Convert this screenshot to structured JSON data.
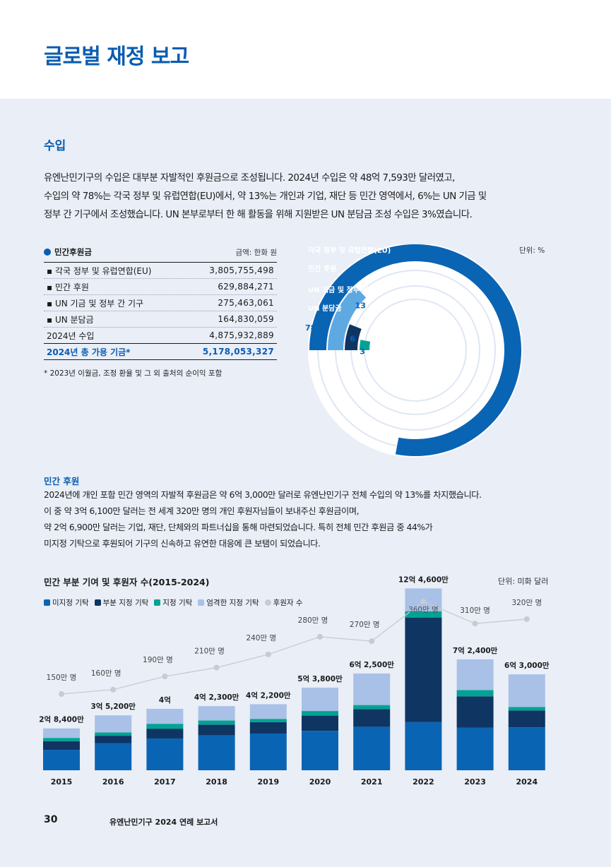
{
  "page_title": "글로벌 재정 보고",
  "section_title": "수입",
  "intro": [
    "유엔난민기구의 수입은 대부분 자발적인 후원금으로 조성됩니다. 2024년 수입은 약 48억 7,593만 달러였고,",
    "수입의 약 78%는 각국 정부 및 유럽연합(EU)에서, 약 13%는 개인과 기업, 재단 등 민간 영역에서, 6%는 UN 기금 및",
    "정부 간 기구에서 조성했습니다. UN 본부로부터 한 해 활동을 위해 지원받은 UN 분담금 조성 수입은 3%였습니다."
  ],
  "table": {
    "title": "민간후원금",
    "unit": "금액: 한화 원",
    "rows": [
      {
        "label": "▪ 각국 정부 및 유럽연합(EU)",
        "amount": "3,805,755,498"
      },
      {
        "label": "▪ 민간 후원",
        "amount": "629,884,271"
      },
      {
        "label": "▪ UN 기금 및 정부 간 기구",
        "amount": "275,463,061"
      },
      {
        "label": "▪ UN 분담금",
        "amount": "164,830,059"
      }
    ],
    "year_row": {
      "label": "2024년 수입",
      "amount": "4,875,932,889"
    },
    "total_row": {
      "label": "2024년 총 가용 기금*",
      "amount": "5,178,053,327"
    },
    "footnote": "* 2023년 이월금, 조정 환율 및 그 외 출처의 순이익 포함"
  },
  "donut": {
    "unit": "단위: %",
    "rings": [
      {
        "label": "각국 정부 및 유럽연합(EU)",
        "value": 78,
        "color": "#0a64b4"
      },
      {
        "label": "민간 후원",
        "value": 13,
        "color": "#5ea9e2"
      },
      {
        "label": "UN 기금 및 정부 간 기구",
        "value": 6,
        "color": "#0f3563"
      },
      {
        "label": "UN 분담금",
        "value": 3,
        "color": "#00a393"
      }
    ]
  },
  "private": {
    "title": "민간 후원",
    "body": [
      "2024년에 개인 포함 민간 영역의 자발적 후원금은 약 6억 3,000만 달러로 유엔난민기구 전체 수입의 약 13%를 차지했습니다.",
      "이 중 약 3억 6,100만 달러는 전 세계 320만 명의 개인 후원자님들이 보내주신 후원금이며,",
      "약 2억 6,900만 달러는 기업, 재단, 단체와의 파트너십을 통해 마련되었습니다. 특히 전체 민간 후원금 중 44%가",
      "미지정 기탁으로 후원되어 기구의 신속하고 유연한 대응에 큰 보탬이 되었습니다."
    ]
  },
  "chart_title": "민간 부분 기여 및 후원자 수(2015-2024)",
  "chart_unit": "단위: 미화 달러",
  "chart_data": {
    "type": "bar",
    "categories": [
      "2015",
      "2016",
      "2017",
      "2018",
      "2019",
      "2020",
      "2021",
      "2022",
      "2023",
      "2024"
    ],
    "series": [
      {
        "name": "미지정 기탁",
        "color": "#0a64b4",
        "values": [
          0.75,
          1.0,
          1.17,
          1.28,
          1.35,
          1.45,
          1.6,
          1.77,
          1.57,
          1.58
        ]
      },
      {
        "name": "부분 지정 기탁",
        "color": "#0f3563",
        "values": [
          0.32,
          0.27,
          0.36,
          0.4,
          0.42,
          0.56,
          0.65,
          3.85,
          1.15,
          0.62
        ]
      },
      {
        "name": "지정 기탁",
        "color": "#00a393",
        "values": [
          0.12,
          0.12,
          0.18,
          0.15,
          0.12,
          0.17,
          0.15,
          0.23,
          0.23,
          0.13
        ]
      },
      {
        "name": "엄격한 지정 기탁",
        "color": "#a9c1e6",
        "values": [
          0.35,
          0.63,
          0.55,
          0.53,
          0.54,
          0.86,
          1.16,
          0.84,
          1.13,
          1.2
        ]
      }
    ],
    "total_labels": [
      "2억 8,400만",
      "3억 5,200만",
      "4억",
      "4억 2,300만",
      "4억 2,200만",
      "5억 3,800만",
      "6억 2,500만",
      "12억 4,600만",
      "7억 2,400만",
      "6억 3,000만"
    ],
    "donors": {
      "name": "후원자 수",
      "color": "#c8cbd0",
      "values": [
        150,
        160,
        190,
        210,
        240,
        280,
        270,
        360,
        310,
        320
      ],
      "labels": [
        "150만 명",
        "160만 명",
        "190만 명",
        "210만 명",
        "240만 명",
        "280만 명",
        "270만 명",
        "360만 명",
        "310만 명",
        "320만 명"
      ]
    },
    "ylim": [
      0,
      7.2
    ]
  },
  "footer": {
    "page_number": "30",
    "report_name": "유엔난민기구 2024 연례 보고서"
  }
}
